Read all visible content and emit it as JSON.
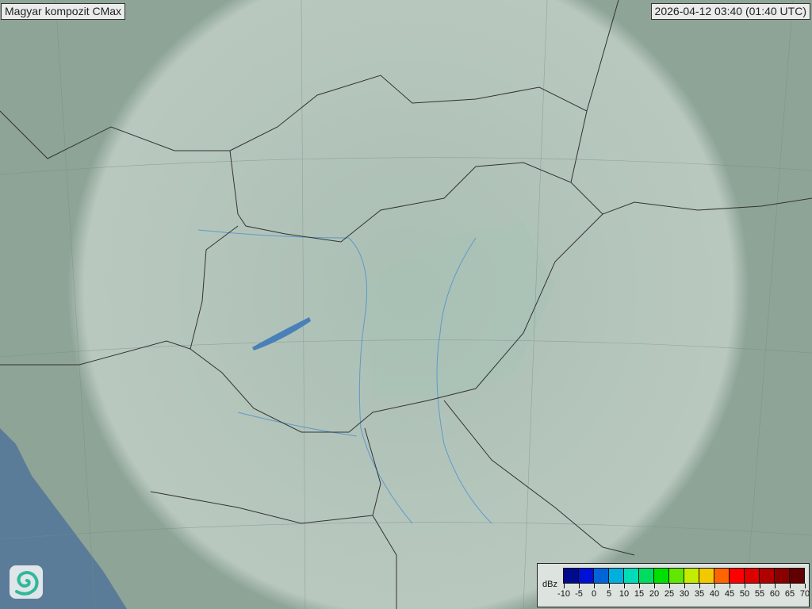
{
  "title": "Magyar kompozit  CMax",
  "timestamp": "2026-04-12 03:40 (01:40 UTC)",
  "legend": {
    "unit": "dBz",
    "labels": [
      "-10",
      "-5",
      "0",
      "5",
      "10",
      "15",
      "20",
      "25",
      "30",
      "35",
      "40",
      "45",
      "50",
      "55",
      "60",
      "65",
      "70"
    ],
    "colors": [
      "#000a8c",
      "#0010d6",
      "#0064d8",
      "#00b0dc",
      "#00dcb8",
      "#00dc60",
      "#00e000",
      "#60e800",
      "#c4ec00",
      "#f4c800",
      "#ff6400",
      "#ff0000",
      "#dc0000",
      "#b00000",
      "#8a0000",
      "#600000"
    ]
  },
  "map": {
    "land_color": "#8ea497",
    "coverage_color": "#c9d8cf",
    "sea_color": "#5a7c98",
    "border_color": "#333333",
    "river_color": "#4a90d0"
  },
  "logo_icon": "swirl-logo-icon"
}
